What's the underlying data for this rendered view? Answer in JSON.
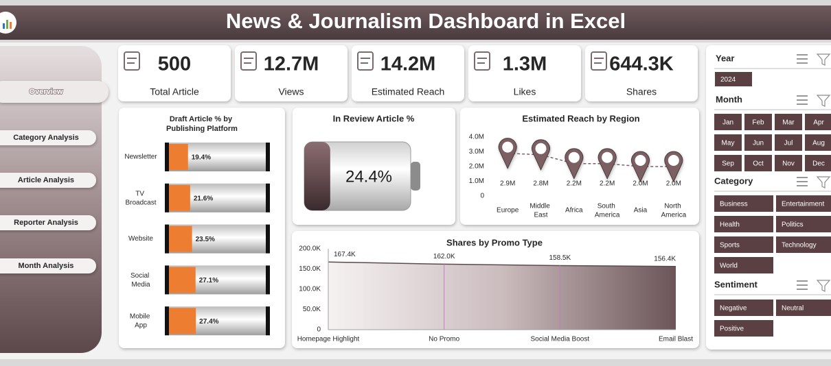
{
  "header": {
    "title": "News & Journalism Dashboard in Excel"
  },
  "nav": [
    "Overview",
    "Category Analysis",
    "Article Analysis",
    "Reporter Analysis",
    "Month Analysis"
  ],
  "kpis": [
    {
      "value": "500",
      "label": "Total Article"
    },
    {
      "value": "12.7M",
      "label": "Views"
    },
    {
      "value": "14.2M",
      "label": "Estimated Reach"
    },
    {
      "value": "1.3M",
      "label": "Likes"
    },
    {
      "value": "644.3K",
      "label": "Shares"
    }
  ],
  "chart_data": [
    {
      "type": "bar",
      "title": "Draft Article % by Publishing Platform",
      "categories": [
        "Newsletter",
        "TV Broadcast",
        "Website",
        "Social Media",
        "Mobile App"
      ],
      "values": [
        19.4,
        21.6,
        23.5,
        27.1,
        27.4
      ],
      "value_labels": [
        "19.4%",
        "21.6%",
        "23.5%",
        "27.1%",
        "27.4%"
      ],
      "xlim": [
        0,
        100
      ],
      "color": "#ed7d31"
    },
    {
      "type": "gauge",
      "title": "In Review Article %",
      "value": 24.4,
      "value_label": "24.4%",
      "xlim": [
        0,
        100
      ],
      "color": "#5a4447"
    },
    {
      "type": "line",
      "title": "Estimated Reach by Region",
      "categories": [
        "Europe",
        "Middle East",
        "Africa",
        "South America",
        "Asia",
        "North America"
      ],
      "values": [
        2900000,
        2800000,
        2200000,
        2200000,
        2000000,
        2000000
      ],
      "value_labels": [
        "2.9M",
        "2.8M",
        "2.2M",
        "2.2M",
        "2.0M",
        "2.0M"
      ],
      "ylim": [
        0,
        4000000
      ],
      "yticks": [
        0,
        {
          "value": 1000000,
          "label": "1.0M"
        },
        {
          "value": 2000000,
          "label": "2.0M"
        },
        {
          "value": 3000000,
          "label": "3.0M"
        },
        {
          "value": 4000000,
          "label": "4.0M"
        }
      ],
      "color": "#7b5f63"
    },
    {
      "type": "area",
      "title": "Shares by Promo Type",
      "categories": [
        "Homepage Highlight",
        "No Promo",
        "Social Media Boost",
        "Email Blast"
      ],
      "values": [
        167400,
        162000,
        158500,
        156400
      ],
      "value_labels": [
        "167.4K",
        "162.0K",
        "158.5K",
        "156.4K"
      ],
      "ylim": [
        0,
        200000
      ],
      "yticks": [
        0,
        {
          "value": 50000,
          "label": "50.0K"
        },
        {
          "value": 100000,
          "label": "100.0K"
        },
        {
          "value": 150000,
          "label": "150.0K"
        },
        {
          "value": 200000,
          "label": "200.0K"
        }
      ],
      "color": "#5e4a4d"
    }
  ],
  "slicers": [
    {
      "title": "Year",
      "items": [
        "2024"
      ]
    },
    {
      "title": "Month",
      "items": [
        "Jan",
        "Feb",
        "Mar",
        "Apr",
        "May",
        "Jun",
        "Jul",
        "Aug",
        "Sep",
        "Oct",
        "Nov",
        "Dec"
      ]
    },
    {
      "title": "Category",
      "items": [
        "Business",
        "Entertainment",
        "Health",
        "Politics",
        "Sports",
        "Technology",
        "World"
      ]
    },
    {
      "title": "Sentiment",
      "items": [
        "Negative",
        "Neutral",
        "Positive"
      ]
    }
  ]
}
